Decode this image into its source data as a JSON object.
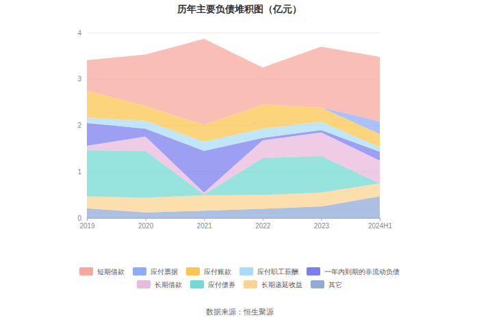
{
  "chart_data": {
    "type": "area",
    "title": "历年主要负债堆积图（亿元）",
    "source": "数据来源：恒生聚源",
    "stacked": true,
    "grid": true,
    "legend": "bottom",
    "categories": [
      "2019",
      "2020",
      "2021",
      "2022",
      "2023",
      "2024H1"
    ],
    "ylim": [
      0,
      4
    ],
    "yticks": [
      0,
      1,
      2,
      3,
      4
    ],
    "series": [
      {
        "name": "短期借款",
        "color": "#f7a89e",
        "values": [
          0.66,
          1.11,
          1.86,
          0.8,
          1.31,
          1.39
        ]
      },
      {
        "name": "应付票据",
        "color": "#8eacf9",
        "values": [
          0,
          0,
          0,
          0,
          0,
          0.28
        ]
      },
      {
        "name": "应付账款",
        "color": "#fbc650",
        "values": [
          0.58,
          0.32,
          0.36,
          0.52,
          0.31,
          0.28
        ]
      },
      {
        "name": "应付职工薪酬",
        "color": "#a9ddf7",
        "values": [
          0.12,
          0.17,
          0.2,
          0.2,
          0.18,
          0.1
        ]
      },
      {
        "name": "一年内到期的非流动负债",
        "color": "#7c80ee",
        "values": [
          0.49,
          0.17,
          0.9,
          0.05,
          0.05,
          0.19
        ]
      },
      {
        "name": "长期借款",
        "color": "#eab9dc",
        "values": [
          0.1,
          0.31,
          0.04,
          0.38,
          0.51,
          0.49
        ]
      },
      {
        "name": "应付债券",
        "color": "#74d9d3",
        "values": [
          0.99,
          1.01,
          0.02,
          0.8,
          0.79,
          0
        ]
      },
      {
        "name": "长期递延收益",
        "color": "#fbd491",
        "values": [
          0.26,
          0.32,
          0.33,
          0.3,
          0.3,
          0.28
        ]
      },
      {
        "name": "其它",
        "color": "#8fabd8",
        "values": [
          0.21,
          0.12,
          0.16,
          0.2,
          0.25,
          0.47
        ]
      }
    ]
  }
}
